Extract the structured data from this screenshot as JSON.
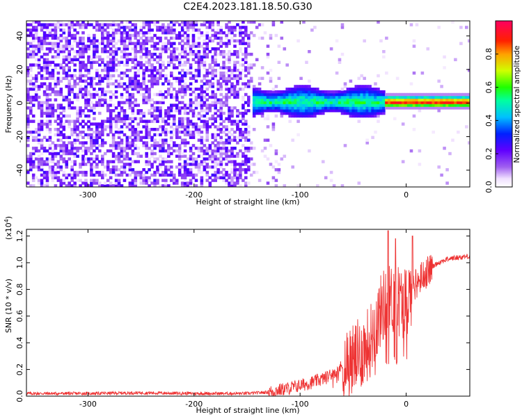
{
  "title": "C2E4.2023.181.18.50.G30",
  "chart_data": [
    {
      "type": "heatmap",
      "xlabel": "Height of straight line (km)",
      "ylabel": "Frequency (Hz)",
      "xlim": [
        -358,
        60
      ],
      "ylim": [
        -50,
        49
      ],
      "xticks": [
        -300,
        -200,
        -100,
        0
      ],
      "yticks": [
        -40,
        -20,
        0,
        20,
        40
      ],
      "colorbar": {
        "label": "Normalized spectral amplitude",
        "range": [
          0,
          1
        ],
        "ticks": [
          0.0,
          0.2,
          0.4,
          0.6,
          0.8
        ],
        "colormap": "rainbow (white, violet, blue, cyan, green, yellow, red, magenta)"
      },
      "regions": [
        {
          "x_range": [
            -358,
            -148
          ],
          "freq_range": [
            -50,
            49
          ],
          "amplitude": "low noise, 0.05-0.3"
        },
        {
          "x_range": [
            -148,
            -120
          ],
          "freq_range": [
            -50,
            49
          ],
          "amplitude": "sparse noise"
        },
        {
          "x_range": [
            -145,
            -20
          ],
          "freq_range": [
            -10,
            10
          ],
          "amplitude": "signal band, 0.2-0.6"
        },
        {
          "x_range": [
            -20,
            60
          ],
          "freq_range": [
            -3,
            3
          ],
          "amplitude": "strong narrow line, 0.8-1.0"
        }
      ]
    },
    {
      "type": "line",
      "xlabel": "Height of straight line (km)",
      "ylabel": "SNR (10 * v/v)",
      "yscale_label": "(x10",
      "yscale_exp": "4",
      "yscale_close": ")",
      "xlim": [
        -358,
        60
      ],
      "ylim": [
        0,
        1.25
      ],
      "xticks": [
        -300,
        -200,
        -100,
        0
      ],
      "yticks": [
        0.0,
        0.2,
        0.4,
        0.6,
        0.8,
        1.0,
        1.2
      ],
      "series": [
        {
          "color": "#ee3333",
          "points": [
            [
              -358,
              0.02
            ],
            [
              -300,
              0.02
            ],
            [
              -250,
              0.025
            ],
            [
              -200,
              0.02
            ],
            [
              -150,
              0.02
            ],
            [
              -130,
              0.03
            ],
            [
              -110,
              0.06
            ],
            [
              -90,
              0.1
            ],
            [
              -75,
              0.14
            ],
            [
              -65,
              0.2
            ],
            [
              -55,
              0.25
            ],
            [
              -45,
              0.3
            ],
            [
              -35,
              0.4
            ],
            [
              -28,
              0.55
            ],
            [
              -22,
              0.68
            ],
            [
              -18,
              0.7
            ],
            [
              -14,
              0.72
            ],
            [
              -10,
              0.75
            ],
            [
              -5,
              0.7
            ],
            [
              0,
              0.72
            ],
            [
              5,
              0.8
            ],
            [
              10,
              0.85
            ],
            [
              15,
              0.9
            ],
            [
              20,
              0.93
            ],
            [
              25,
              0.97
            ],
            [
              30,
              1.0
            ],
            [
              40,
              1.03
            ],
            [
              50,
              1.04
            ],
            [
              60,
              1.05
            ]
          ]
        }
      ]
    }
  ]
}
